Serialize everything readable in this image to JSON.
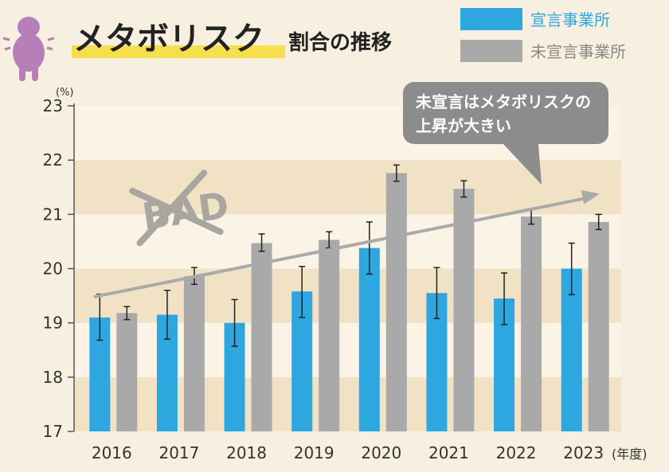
{
  "title": {
    "main": "メタボリスク",
    "sub": "割合の推移"
  },
  "legend": [
    {
      "label": "宣言事業所",
      "color": "#2ea6e0",
      "text_color": "#2ea6e0"
    },
    {
      "label": "未宣言事業所",
      "color": "#a9a9a9",
      "text_color": "#888888"
    }
  ],
  "callout": {
    "line1": "未宣言はメタボリスクの",
    "line2": "上昇が大きい"
  },
  "stamp_text": "BAD",
  "y_unit": "(%)",
  "x_unit": "(年度)",
  "icons": {
    "mascot": "overweight-person-icon"
  },
  "chart_data": {
    "type": "bar",
    "categories": [
      "2016",
      "2017",
      "2018",
      "2019",
      "2020",
      "2021",
      "2022",
      "2023"
    ],
    "ylim": [
      17,
      23
    ],
    "yticks": [
      17,
      18,
      19,
      20,
      21,
      22,
      23
    ],
    "series": [
      {
        "name": "宣言事業所",
        "color": "#2ea6e0",
        "values": [
          19.1,
          19.15,
          19.0,
          19.58,
          20.38,
          19.55,
          19.45,
          20.0
        ],
        "err_low": [
          18.68,
          18.7,
          18.57,
          19.1,
          19.9,
          19.08,
          18.97,
          19.52
        ],
        "err_high": [
          19.53,
          19.6,
          19.43,
          20.04,
          20.86,
          20.02,
          19.92,
          20.47
        ]
      },
      {
        "name": "未宣言事業所",
        "color": "#a9a9a9",
        "values": [
          19.18,
          19.86,
          20.47,
          20.53,
          21.76,
          21.47,
          20.96,
          20.86
        ],
        "err_low": [
          19.06,
          19.71,
          20.32,
          20.38,
          21.61,
          21.32,
          20.82,
          20.72
        ],
        "err_high": [
          19.3,
          20.02,
          20.64,
          20.68,
          21.91,
          21.62,
          21.1,
          21.0
        ]
      }
    ],
    "trend_line": {
      "from": {
        "x": "2016",
        "y": 19.48
      },
      "to": {
        "x": "2023",
        "y": 21.38
      }
    }
  }
}
